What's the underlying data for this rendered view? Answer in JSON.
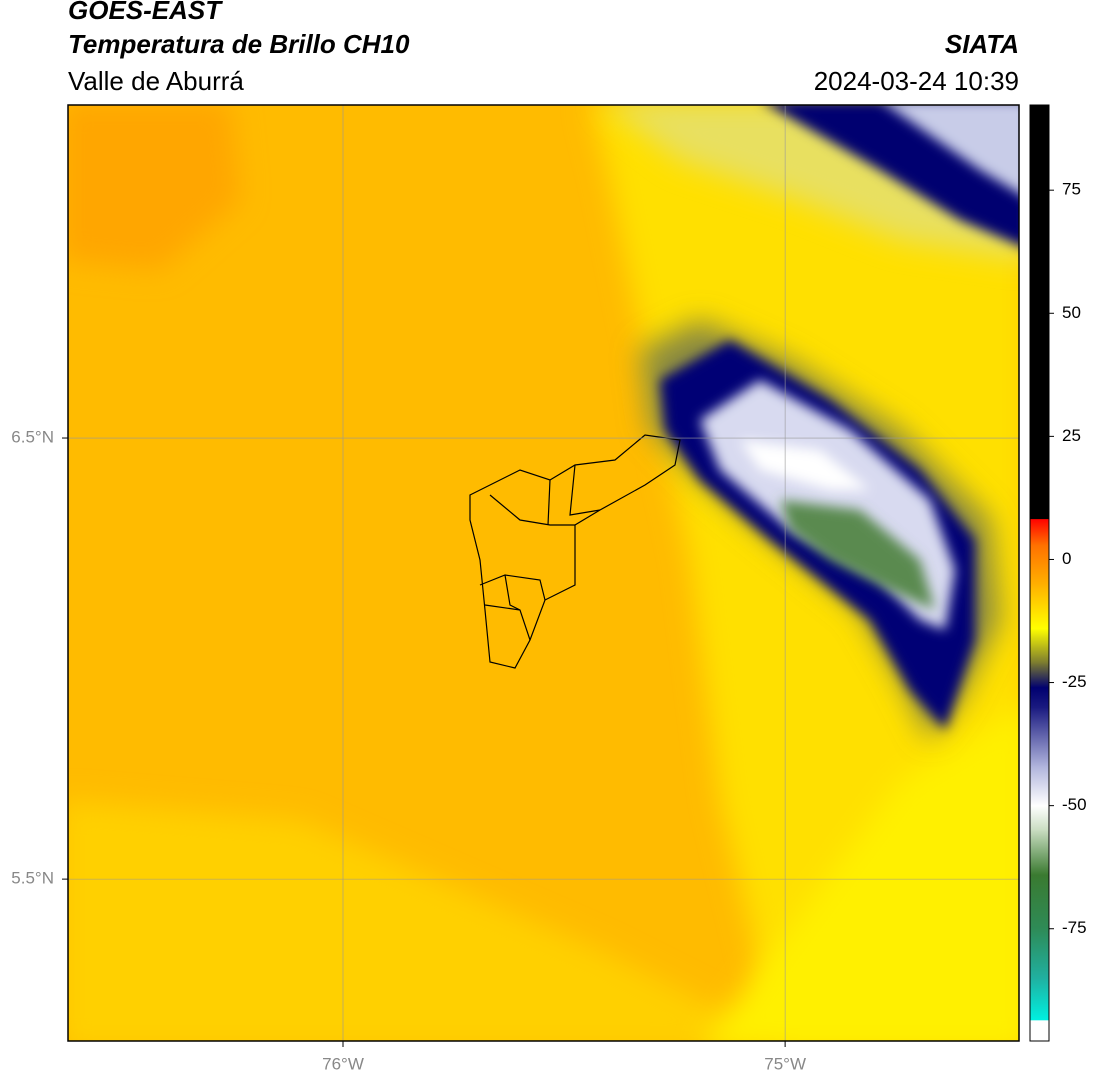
{
  "header": {
    "title": "GOES-EAST",
    "subtitle": "Temperatura de Brillo CH10",
    "region": "Valle de Aburrá",
    "source": "SIATA",
    "datetime": "2024-03-24 10:39"
  },
  "map": {
    "xlim": [
      -76.622,
      -74.471
    ],
    "ylim": [
      5.133,
      7.255
    ],
    "xticks": [
      {
        "value": -76,
        "label": "76°W"
      },
      {
        "value": -75,
        "label": "75°W"
      }
    ],
    "yticks": [
      {
        "value": 6.5,
        "label": "6.5°N"
      },
      {
        "value": 5.5,
        "label": "5.5°N"
      }
    ],
    "grid": true
  },
  "colorbar": {
    "lim": [
      -97.8,
      92.3
    ],
    "ticks": [
      75,
      50,
      25,
      0,
      -25,
      -50,
      -75
    ],
    "stops": [
      {
        "value": -97.8,
        "color": "#ffffff"
      },
      {
        "value": -93.5,
        "color": "#ffffff"
      },
      {
        "value": -93.5,
        "color": "#00f0e0"
      },
      {
        "value": -85,
        "color": "#20b0a0"
      },
      {
        "value": -75,
        "color": "#2e8b57"
      },
      {
        "value": -64,
        "color": "#3a7a30"
      },
      {
        "value": -55,
        "color": "#c8dcc0"
      },
      {
        "value": -50,
        "color": "#ffffff"
      },
      {
        "value": -42,
        "color": "#b0b4dc"
      },
      {
        "value": -30,
        "color": "#1a1a80"
      },
      {
        "value": -26,
        "color": "#000070"
      },
      {
        "value": -21,
        "color": "#7a7a30"
      },
      {
        "value": -14,
        "color": "#ffff00"
      },
      {
        "value": -5,
        "color": "#ffb000"
      },
      {
        "value": 3,
        "color": "#ff7000"
      },
      {
        "value": 8.3,
        "color": "#ff0000"
      },
      {
        "value": 8.3,
        "color": "#000000"
      },
      {
        "value": 92.3,
        "color": "#000000"
      }
    ]
  }
}
